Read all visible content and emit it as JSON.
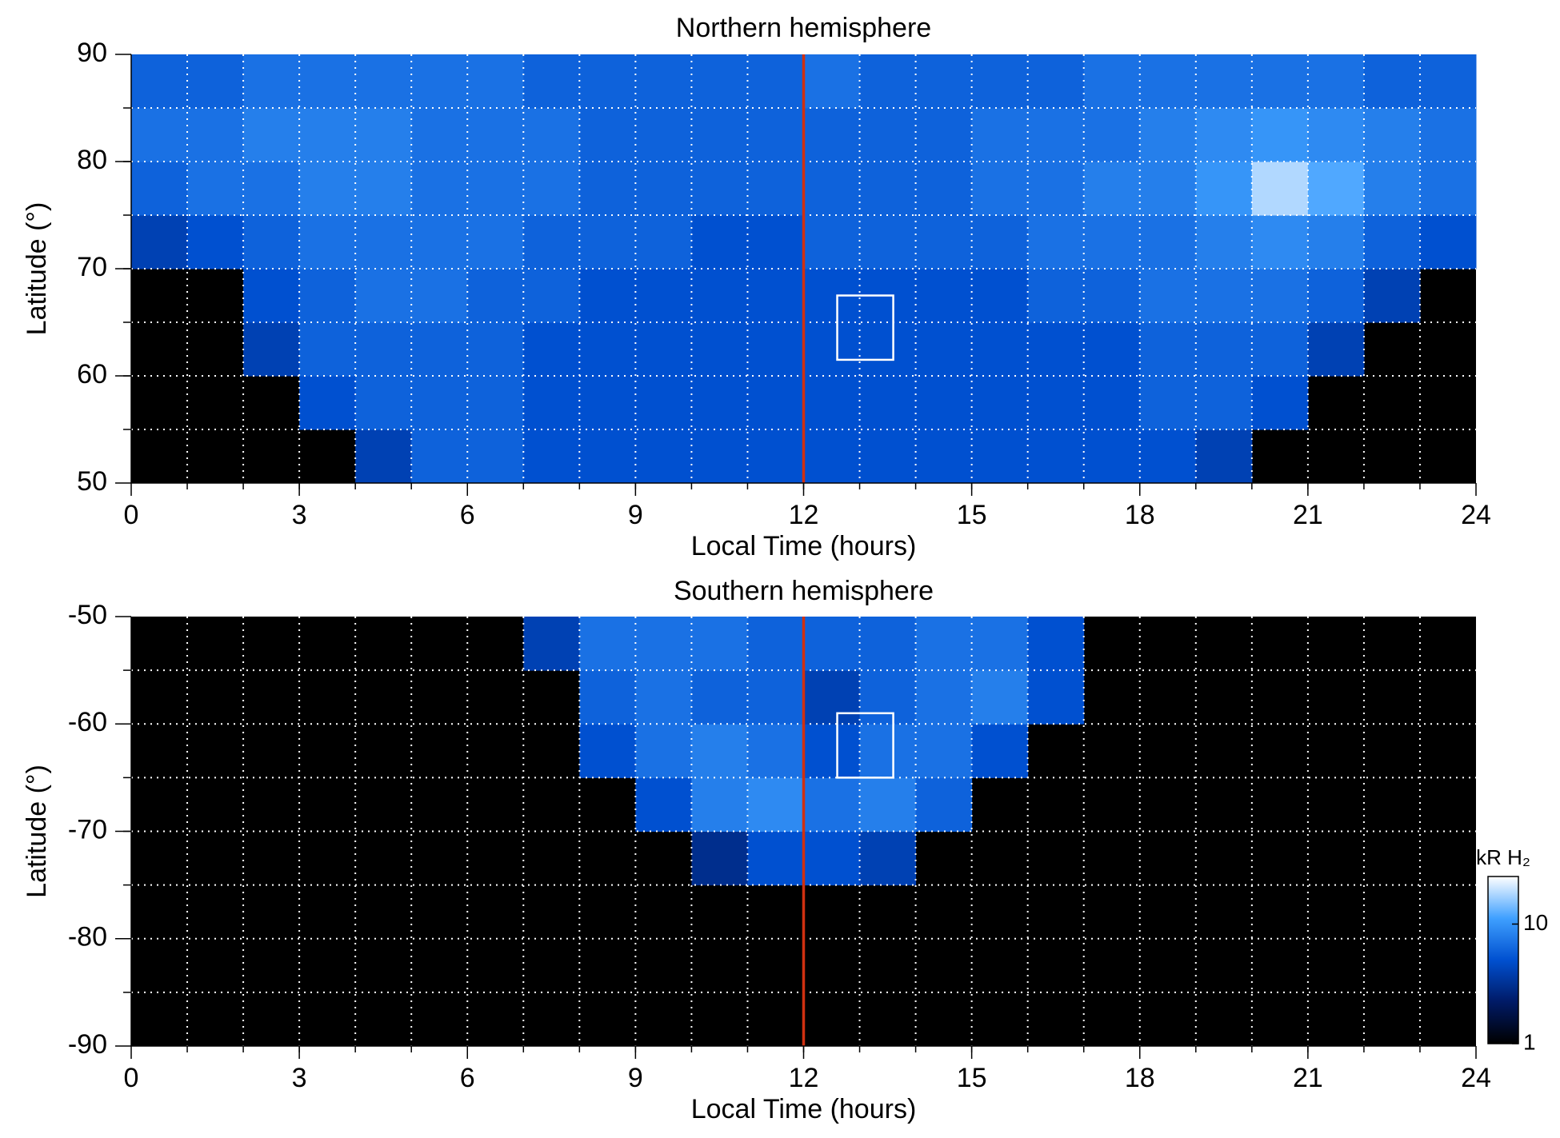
{
  "chart_data": [
    {
      "type": "heatmap",
      "title": "Northern hemisphere",
      "x_label": "Local Time (hours)",
      "y_label": "Latitude (°)",
      "xlim": [
        0,
        24
      ],
      "ylim": [
        50,
        90
      ],
      "xticks": [
        0,
        3,
        6,
        9,
        12,
        15,
        18,
        21,
        24
      ],
      "yticks": [
        50,
        60,
        70,
        80,
        90
      ],
      "grid_x": [
        1,
        2,
        3,
        4,
        5,
        6,
        7,
        8,
        9,
        10,
        11,
        12,
        13,
        14,
        15,
        16,
        17,
        18,
        19,
        20,
        21,
        22,
        23
      ],
      "grid_y": [
        55,
        60,
        65,
        70,
        75,
        80,
        85
      ],
      "colormap": [
        "#000000",
        "#001a66",
        "#0050d0",
        "#3fa0ff",
        "#ffffff"
      ],
      "clim": [
        1,
        25
      ],
      "x_edges": [
        0,
        1,
        2,
        3,
        4,
        5,
        6,
        7,
        8,
        9,
        10,
        11,
        12,
        13,
        14,
        15,
        16,
        17,
        18,
        19,
        20,
        21,
        22,
        23,
        24
      ],
      "y_edges": [
        50,
        55,
        60,
        65,
        70,
        75,
        80,
        85,
        90
      ],
      "values": [
        [
          null,
          null,
          null,
          null,
          4,
          6,
          6,
          5,
          5,
          5,
          5,
          5,
          5,
          5,
          5,
          5,
          5,
          5,
          5,
          4,
          null,
          null,
          null,
          null
        ],
        [
          null,
          null,
          null,
          5,
          6,
          6,
          6,
          5,
          5,
          5,
          5,
          5,
          5,
          5,
          5,
          5,
          5,
          5,
          6,
          6,
          5,
          null,
          null,
          null
        ],
        [
          null,
          null,
          4,
          6,
          6,
          6,
          6,
          5,
          5,
          5,
          5,
          5,
          5,
          5,
          5,
          5,
          5,
          5,
          6,
          6,
          6,
          4,
          null,
          null
        ],
        [
          null,
          null,
          5,
          6,
          7,
          7,
          6,
          6,
          5,
          5,
          5,
          5,
          5,
          5,
          5,
          5,
          6,
          6,
          7,
          7,
          7,
          6,
          4,
          null
        ],
        [
          4,
          5,
          6,
          7,
          7,
          7,
          7,
          6,
          6,
          6,
          5,
          5,
          6,
          6,
          6,
          6,
          7,
          7,
          7,
          8,
          9,
          8,
          6,
          5
        ],
        [
          6,
          7,
          7,
          8,
          8,
          7,
          7,
          7,
          6,
          6,
          6,
          6,
          6,
          6,
          6,
          7,
          7,
          8,
          8,
          10,
          18,
          12,
          8,
          7
        ],
        [
          7,
          7,
          8,
          8,
          8,
          7,
          7,
          7,
          6,
          6,
          6,
          6,
          6,
          6,
          6,
          7,
          7,
          7,
          8,
          9,
          10,
          9,
          8,
          7
        ],
        [
          6,
          6,
          7,
          7,
          7,
          7,
          7,
          6,
          6,
          6,
          6,
          6,
          7,
          6,
          6,
          6,
          6,
          7,
          7,
          7,
          7,
          7,
          6,
          6
        ]
      ],
      "noon_line": {
        "x": 12,
        "color": "#d03010"
      },
      "box": {
        "x": [
          12.6,
          13.6
        ],
        "y": [
          61.5,
          67.5
        ]
      }
    },
    {
      "type": "heatmap",
      "title": "Southern hemisphere",
      "x_label": "Local Time (hours)",
      "y_label": "Latitude (°)",
      "xlim": [
        0,
        24
      ],
      "ylim": [
        -90,
        -50
      ],
      "xticks": [
        0,
        3,
        6,
        9,
        12,
        15,
        18,
        21,
        24
      ],
      "yticks": [
        -90,
        -80,
        -70,
        -60,
        -50
      ],
      "grid_x": [
        1,
        2,
        3,
        4,
        5,
        6,
        7,
        8,
        9,
        10,
        11,
        12,
        13,
        14,
        15,
        16,
        17,
        18,
        19,
        20,
        21,
        22,
        23
      ],
      "grid_y": [
        -85,
        -80,
        -75,
        -70,
        -65,
        -60,
        -55
      ],
      "colormap": [
        "#000000",
        "#001a66",
        "#0050d0",
        "#3fa0ff",
        "#ffffff"
      ],
      "clim": [
        1,
        25
      ],
      "x_edges": [
        0,
        1,
        2,
        3,
        4,
        5,
        6,
        7,
        8,
        9,
        10,
        11,
        12,
        13,
        14,
        15,
        16,
        17,
        18,
        19,
        20,
        21,
        22,
        23,
        24
      ],
      "y_edges": [
        -90,
        -85,
        -80,
        -75,
        -70,
        -65,
        -60,
        -55,
        -50
      ],
      "values": [
        [
          null,
          null,
          null,
          null,
          null,
          null,
          null,
          null,
          null,
          null,
          null,
          null,
          null,
          null,
          null,
          null,
          null,
          null,
          null,
          null,
          null,
          null,
          null,
          null
        ],
        [
          null,
          null,
          null,
          null,
          null,
          null,
          null,
          null,
          null,
          null,
          null,
          null,
          null,
          null,
          null,
          null,
          null,
          null,
          null,
          null,
          null,
          null,
          null,
          null
        ],
        [
          null,
          null,
          null,
          null,
          null,
          null,
          null,
          null,
          null,
          null,
          null,
          null,
          null,
          null,
          null,
          null,
          null,
          null,
          null,
          null,
          null,
          null,
          null,
          null
        ],
        [
          null,
          null,
          null,
          null,
          null,
          null,
          null,
          null,
          null,
          null,
          3,
          5,
          5,
          4,
          null,
          null,
          null,
          null,
          null,
          null,
          null,
          null,
          null,
          null
        ],
        [
          null,
          null,
          null,
          null,
          null,
          null,
          null,
          null,
          null,
          5,
          8,
          9,
          7,
          8,
          6,
          null,
          null,
          null,
          null,
          null,
          null,
          null,
          null,
          null
        ],
        [
          null,
          null,
          null,
          null,
          null,
          null,
          null,
          null,
          5,
          7,
          8,
          7,
          5,
          7,
          7,
          5,
          null,
          null,
          null,
          null,
          null,
          null,
          null,
          null
        ],
        [
          null,
          null,
          null,
          null,
          null,
          null,
          null,
          null,
          6,
          7,
          6,
          6,
          4,
          6,
          7,
          8,
          5,
          null,
          null,
          null,
          null,
          null,
          null,
          null
        ],
        [
          null,
          null,
          null,
          null,
          null,
          null,
          null,
          4,
          7,
          7,
          7,
          6,
          6,
          6,
          7,
          7,
          5,
          null,
          null,
          null,
          null,
          null,
          null,
          null
        ]
      ],
      "noon_line": {
        "x": 12,
        "color": "#d03010"
      },
      "box": {
        "x": [
          12.6,
          13.6
        ],
        "y": [
          -65,
          -59
        ]
      },
      "colorbar": {
        "label": "kR H₂",
        "scale": "log",
        "lim": [
          1,
          25
        ],
        "ticks": [
          1,
          10
        ]
      }
    }
  ]
}
